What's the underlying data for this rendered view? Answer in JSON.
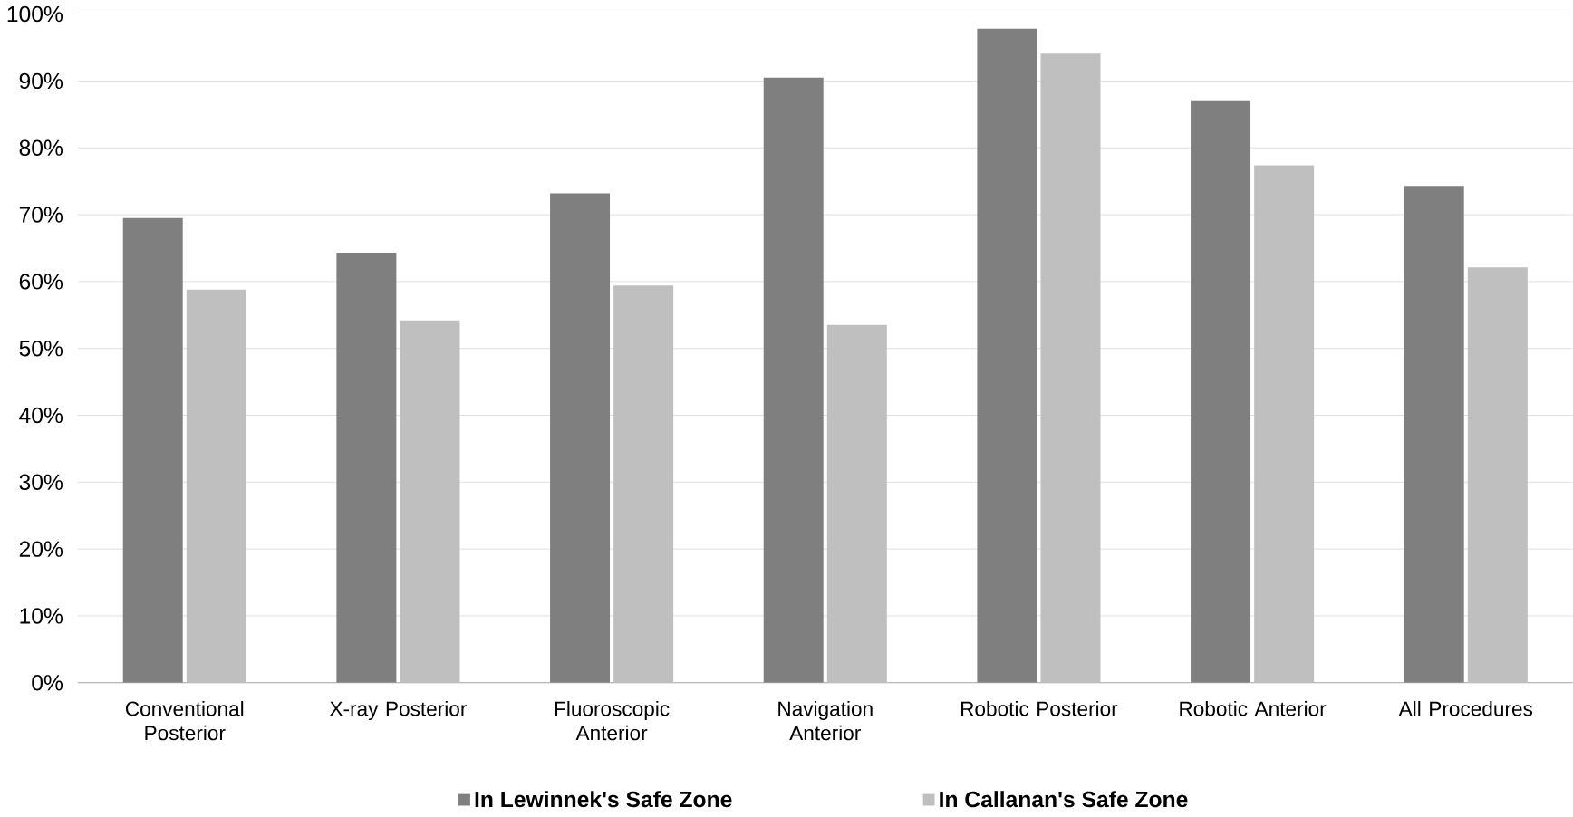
{
  "chart_data": {
    "type": "bar",
    "categories": [
      "Conventional Posterior",
      "X-ray Posterior",
      "Fluoroscopic Anterior",
      "Navigation Anterior",
      "Robotic Posterior",
      "Robotic Anterior",
      "All Procedures"
    ],
    "series": [
      {
        "name": "In Lewinnek's Safe Zone",
        "color": "#7f7f7f",
        "values": [
          69.5,
          64.3,
          73.2,
          90.5,
          97.8,
          87.1,
          74.3
        ]
      },
      {
        "name": "In Callanan's Safe Zone",
        "color": "#bfbfbf",
        "values": [
          58.8,
          54.2,
          59.4,
          53.5,
          94.1,
          77.4,
          62.1
        ]
      }
    ],
    "ylim": [
      0,
      100
    ],
    "yticks": [
      {
        "value": 0,
        "label": "0%"
      },
      {
        "value": 10,
        "label": "10%"
      },
      {
        "value": 20,
        "label": "20%"
      },
      {
        "value": 30,
        "label": "30%"
      },
      {
        "value": 40,
        "label": "40%"
      },
      {
        "value": 50,
        "label": "50%"
      },
      {
        "value": 60,
        "label": "60%"
      },
      {
        "value": 70,
        "label": "70%"
      },
      {
        "value": 80,
        "label": "80%"
      },
      {
        "value": 90,
        "label": "90%"
      },
      {
        "value": 100,
        "label": "100%"
      }
    ],
    "grid": "y",
    "legend": "bottom"
  }
}
